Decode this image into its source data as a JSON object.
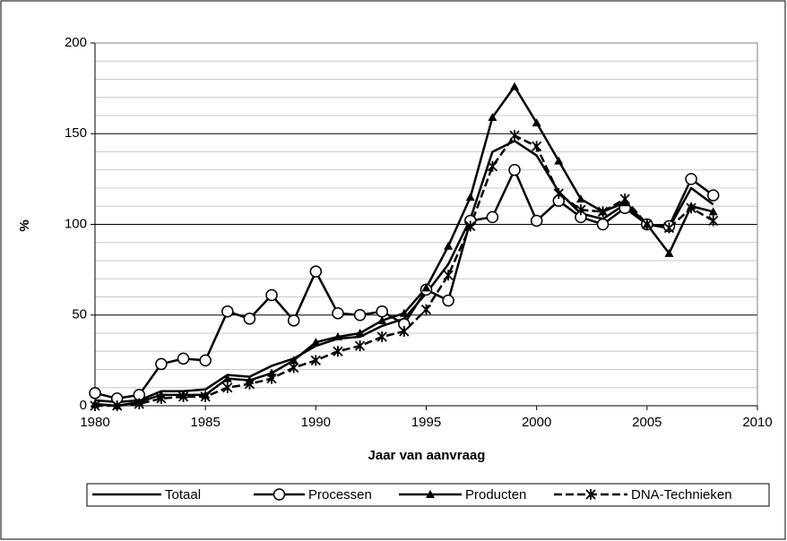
{
  "chart_data": {
    "type": "line",
    "x_label": "Jaar van aanvraag",
    "y_label": "%",
    "x": [
      1980,
      1981,
      1982,
      1983,
      1984,
      1985,
      1986,
      1987,
      1988,
      1989,
      1990,
      1991,
      1992,
      1993,
      1994,
      1995,
      1996,
      1997,
      1998,
      1999,
      2000,
      2001,
      2002,
      2003,
      2004,
      2005,
      2006,
      2007,
      2008
    ],
    "series": [
      {
        "name": "Totaal",
        "color": "#000000",
        "marker": "none",
        "dash": "solid",
        "values": [
          3,
          2,
          3,
          8,
          8,
          9,
          17,
          16,
          22,
          26,
          33,
          37,
          38,
          44,
          48,
          62,
          78,
          103,
          140,
          146,
          138,
          118,
          106,
          103,
          111,
          100,
          98,
          120,
          111
        ]
      },
      {
        "name": "Processen",
        "color": "#000000",
        "marker": "circle",
        "dash": "solid",
        "values": [
          7,
          4,
          6,
          23,
          26,
          25,
          52,
          48,
          61,
          47,
          74,
          51,
          50,
          52,
          45,
          64,
          58,
          102,
          104,
          130,
          102,
          113,
          104,
          100,
          109,
          100,
          99,
          125,
          116
        ]
      },
      {
        "name": "Producten",
        "color": "#000000",
        "marker": "triangle",
        "dash": "solid",
        "values": [
          1,
          0,
          2,
          6,
          6,
          6,
          15,
          14,
          18,
          25,
          35,
          38,
          40,
          47,
          51,
          65,
          88,
          115,
          159,
          176,
          156,
          135,
          114,
          107,
          112,
          100,
          84,
          110,
          107
        ]
      },
      {
        "name": "DNA-Technieken",
        "color": "#000000",
        "marker": "asterisk",
        "dash": "dashed",
        "values": [
          0,
          0,
          1,
          4,
          5,
          5,
          10,
          12,
          15,
          21,
          25,
          30,
          33,
          38,
          41,
          53,
          72,
          99,
          132,
          149,
          143,
          117,
          108,
          107,
          114,
          100,
          98,
          109,
          102
        ]
      }
    ],
    "xlim": [
      1980,
      2010
    ],
    "xticks": [
      1980,
      1985,
      1990,
      1995,
      2000,
      2005,
      2010
    ],
    "ylim": [
      0,
      200
    ],
    "yticks": [
      0,
      50,
      100,
      150,
      200
    ],
    "minor_yticks": [
      10,
      20,
      30,
      40,
      60,
      70,
      80,
      90,
      110,
      120,
      130,
      140,
      160,
      170,
      180,
      190
    ],
    "grid": true,
    "legend": "bottom"
  }
}
